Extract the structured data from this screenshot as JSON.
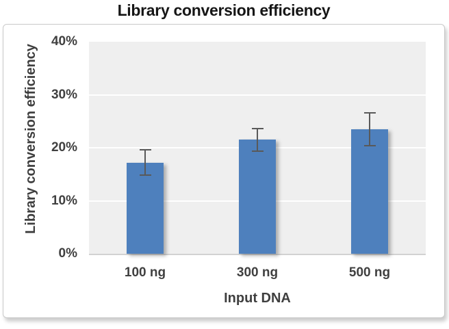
{
  "chart_data": {
    "type": "bar",
    "title": "Library conversion efficiency",
    "xlabel": "Input DNA",
    "ylabel": "Library conversion efficiency",
    "categories": [
      "100 ng",
      "300 ng",
      "500 ng"
    ],
    "values": [
      17.2,
      21.5,
      23.5
    ],
    "errors": [
      2.4,
      2.1,
      3.1
    ],
    "y_ticks": [
      0,
      10,
      20,
      30,
      40
    ],
    "y_tick_labels": [
      "0%",
      "10%",
      "20%",
      "30%",
      "40%"
    ],
    "ylim": [
      0,
      40
    ],
    "grid": true,
    "legend": false,
    "bar_color": "#4e80bd",
    "plot_bg_color": "#efefef",
    "gridline_color": "#ffffff",
    "axis_line_color": "#d2d2d2",
    "error_bar_color": "#595959",
    "tick_text_color": "#404040",
    "axis_title_color": "#3f3f3f",
    "title_color": "#161616",
    "frame_border_color": "#c9c9c9"
  }
}
